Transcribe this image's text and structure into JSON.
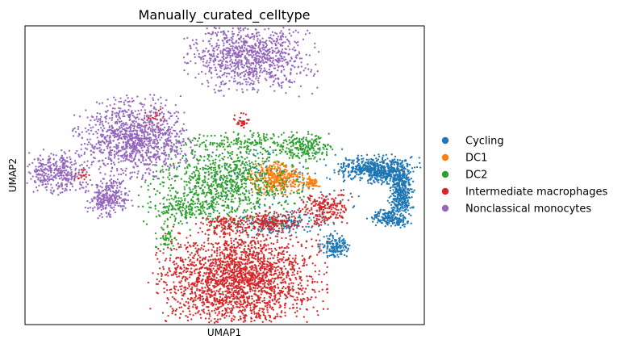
{
  "chart_data": {
    "type": "scatter",
    "title": "Manually_curated_celltype",
    "xlabel": "UMAP1",
    "ylabel": "UMAP2",
    "xticks": [],
    "yticks": [],
    "grid": false,
    "legend_position": "right",
    "series": [
      {
        "name": "Cycling",
        "color": "#1f77b4",
        "clusters": [
          {
            "cx": 0.72,
            "cy": 0.15,
            "rx": 0.15,
            "ry": 0.05,
            "count": 420
          },
          {
            "cx": 0.78,
            "cy": 0.1,
            "rx": 0.08,
            "ry": 0.04,
            "count": 180
          },
          {
            "cx": 0.87,
            "cy": -0.02,
            "rx": 0.045,
            "ry": 0.14,
            "count": 420
          },
          {
            "cx": 0.8,
            "cy": -0.18,
            "rx": 0.07,
            "ry": 0.035,
            "count": 160
          },
          {
            "cx": 0.5,
            "cy": -0.37,
            "rx": 0.06,
            "ry": 0.05,
            "count": 150
          },
          {
            "cx": 0.2,
            "cy": -0.22,
            "rx": 0.18,
            "ry": 0.05,
            "count": 150
          },
          {
            "cx": 0.15,
            "cy": 0.05,
            "rx": 0.35,
            "ry": 0.2,
            "count": 140
          }
        ]
      },
      {
        "name": "DC1",
        "color": "#ff7f0e",
        "clusters": [
          {
            "cx": 0.17,
            "cy": 0.08,
            "rx": 0.1,
            "ry": 0.07,
            "count": 380
          },
          {
            "cx": 0.36,
            "cy": 0.04,
            "rx": 0.03,
            "ry": 0.03,
            "count": 60
          }
        ]
      },
      {
        "name": "DC2",
        "color": "#2ca02c",
        "clusters": [
          {
            "cx": -0.12,
            "cy": 0.05,
            "rx": 0.28,
            "ry": 0.18,
            "count": 900
          },
          {
            "cx": 0.32,
            "cy": 0.28,
            "rx": 0.1,
            "ry": 0.06,
            "count": 200
          },
          {
            "cx": -0.35,
            "cy": -0.12,
            "rx": 0.12,
            "ry": 0.05,
            "count": 140
          },
          {
            "cx": 0.0,
            "cy": 0.32,
            "rx": 0.25,
            "ry": 0.05,
            "count": 140
          },
          {
            "cx": -0.45,
            "cy": -0.3,
            "rx": 0.04,
            "ry": 0.08,
            "count": 50
          }
        ]
      },
      {
        "name": "Intermediate macrophages",
        "color": "#d62728",
        "clusters": [
          {
            "cx": -0.05,
            "cy": -0.58,
            "rx": 0.29,
            "ry": 0.22,
            "count": 2200
          },
          {
            "cx": 0.44,
            "cy": -0.12,
            "rx": 0.09,
            "ry": 0.07,
            "count": 220
          },
          {
            "cx": 0.15,
            "cy": -0.2,
            "rx": 0.12,
            "ry": 0.05,
            "count": 170
          },
          {
            "cx": -0.12,
            "cy": -0.22,
            "rx": 0.1,
            "ry": 0.04,
            "count": 120
          },
          {
            "cx": -0.02,
            "cy": 0.46,
            "rx": 0.04,
            "ry": 0.04,
            "count": 30
          },
          {
            "cx": -0.52,
            "cy": 0.48,
            "rx": 0.04,
            "ry": 0.04,
            "count": 25
          },
          {
            "cx": -0.93,
            "cy": 0.1,
            "rx": 0.03,
            "ry": 0.03,
            "count": 20
          }
        ]
      },
      {
        "name": "Nonclassical monocytes",
        "color": "#9467bd",
        "clusters": [
          {
            "cx": 0.03,
            "cy": 0.88,
            "rx": 0.22,
            "ry": 0.15,
            "count": 950
          },
          {
            "cx": -0.63,
            "cy": 0.34,
            "rx": 0.2,
            "ry": 0.17,
            "count": 1100
          },
          {
            "cx": -1.07,
            "cy": 0.12,
            "rx": 0.11,
            "ry": 0.09,
            "count": 350
          },
          {
            "cx": -0.78,
            "cy": -0.05,
            "rx": 0.08,
            "ry": 0.08,
            "count": 280
          }
        ]
      }
    ]
  }
}
